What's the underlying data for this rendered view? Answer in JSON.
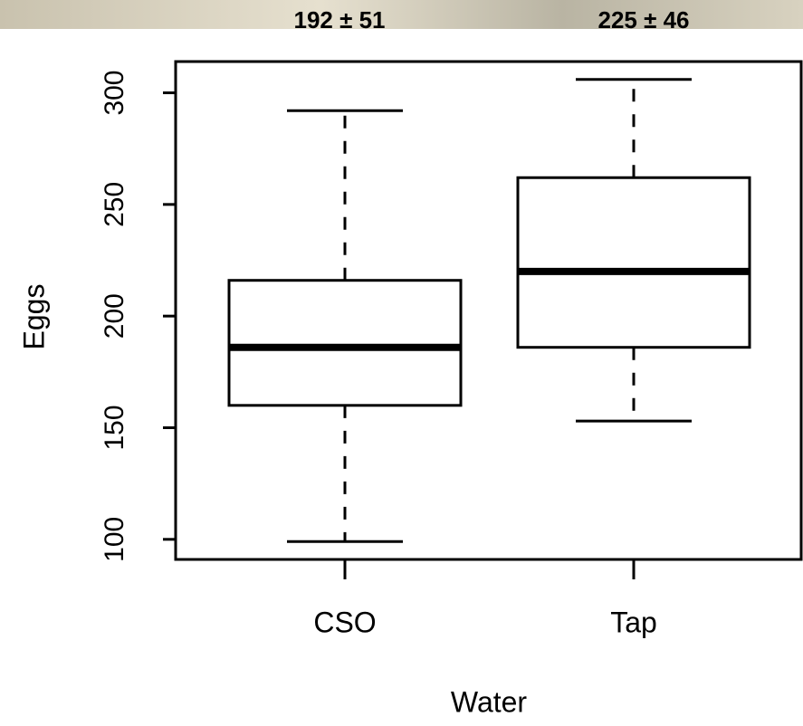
{
  "chart_data": {
    "type": "box",
    "annotations": [
      "192 ± 51",
      "225 ± 46"
    ],
    "x_label": "Water",
    "y_label": "Eggs",
    "categories": [
      "CSO",
      "Tap"
    ],
    "min": [
      99,
      153
    ],
    "q1": [
      160,
      186
    ],
    "median": [
      186,
      220
    ],
    "q3": [
      216,
      262
    ],
    "max": [
      292,
      306
    ],
    "ylim": [
      91,
      314
    ],
    "yticks": [
      100,
      150,
      200,
      250,
      300
    ],
    "color": "#000000"
  }
}
